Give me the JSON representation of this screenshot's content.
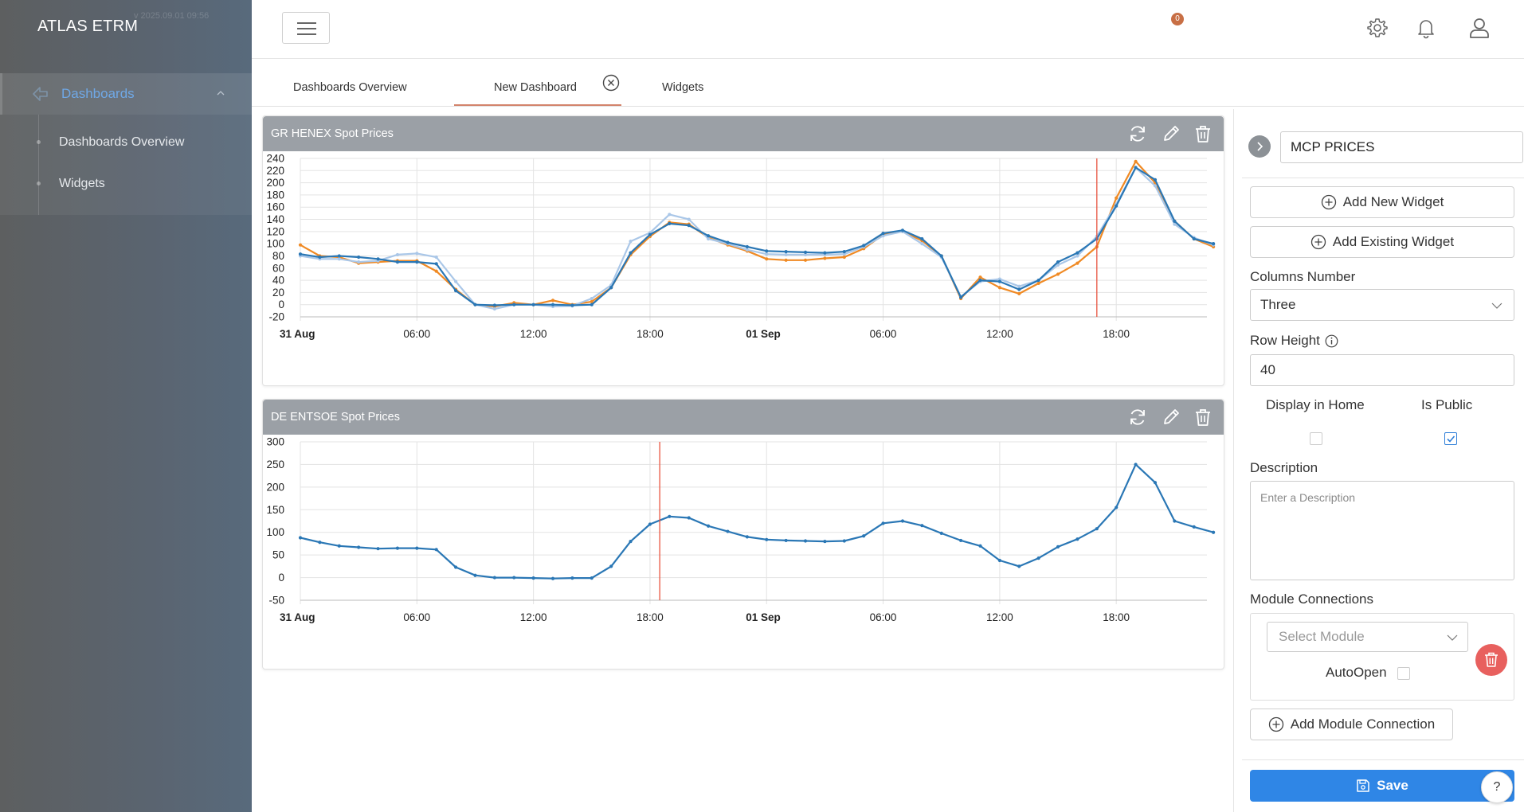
{
  "app": {
    "brand": "ATLAS ETRM",
    "timestamp": "v 2025.09.01 09:56"
  },
  "sidebar": {
    "active": "Dashboards",
    "items": [
      {
        "label": "Dashboards Overview"
      },
      {
        "label": "Widgets"
      }
    ]
  },
  "topbar": {
    "notifications_count": "0"
  },
  "tabs": [
    {
      "label": "Dashboards Overview"
    },
    {
      "label": "New Dashboard"
    },
    {
      "label": "Widgets"
    }
  ],
  "widgets": [
    {
      "title": "GR HENEX Spot Prices"
    },
    {
      "title": "DE ENTSOE Spot Prices"
    }
  ],
  "chart_data": [
    {
      "type": "line",
      "title": "GR HENEX Spot Prices",
      "ylim": [
        -20,
        240
      ],
      "yticks": [
        -20,
        0,
        20,
        40,
        60,
        80,
        100,
        120,
        140,
        160,
        180,
        200,
        220,
        240
      ],
      "xticks": [
        "31 Aug",
        "06:00",
        "12:00",
        "18:00",
        "01 Sep",
        "06:00",
        "12:00",
        "18:00"
      ],
      "xticks_bold": [
        true,
        false,
        false,
        false,
        true,
        false,
        false,
        false
      ],
      "x": [
        0,
        1,
        2,
        3,
        4,
        5,
        6,
        7,
        8,
        9,
        10,
        11,
        12,
        13,
        14,
        15,
        16,
        17,
        18,
        19,
        20,
        21,
        22,
        23,
        24,
        25,
        26,
        27,
        28,
        29,
        30,
        31,
        32,
        33,
        34,
        35,
        36,
        37,
        38,
        39,
        40,
        41,
        42,
        43,
        44,
        45,
        46,
        47
      ],
      "now_marker_x": 41,
      "series": [
        {
          "color": "#f08a24",
          "values": [
            98,
            80,
            78,
            68,
            70,
            72,
            72,
            55,
            25,
            0,
            -3,
            3,
            0,
            7,
            0,
            5,
            28,
            82,
            112,
            135,
            132,
            110,
            98,
            88,
            75,
            73,
            73,
            76,
            78,
            92,
            115,
            120,
            105,
            80,
            10,
            45,
            28,
            18,
            35,
            50,
            68,
            95,
            175,
            235,
            200,
            137,
            108,
            95
          ]
        },
        {
          "color": "#aac7e8",
          "values": [
            80,
            75,
            75,
            70,
            72,
            82,
            84,
            78,
            38,
            0,
            -7,
            0,
            0,
            -3,
            -2,
            10,
            32,
            104,
            118,
            148,
            140,
            108,
            100,
            90,
            83,
            82,
            82,
            82,
            83,
            95,
            113,
            120,
            100,
            78,
            13,
            38,
            42,
            30,
            40,
            65,
            80,
            112,
            165,
            225,
            195,
            132,
            110,
            98
          ]
        },
        {
          "color": "#2a77b5",
          "values": [
            83,
            78,
            80,
            78,
            75,
            70,
            70,
            67,
            23,
            0,
            -1,
            0,
            0,
            0,
            -1,
            0,
            28,
            85,
            115,
            133,
            130,
            113,
            102,
            95,
            88,
            87,
            86,
            85,
            87,
            97,
            117,
            122,
            108,
            80,
            12,
            40,
            38,
            25,
            40,
            70,
            85,
            108,
            162,
            225,
            205,
            137,
            108,
            100
          ]
        }
      ]
    },
    {
      "type": "line",
      "title": "DE ENTSOE Spot Prices",
      "ylim": [
        -50,
        300
      ],
      "yticks": [
        -50,
        0,
        50,
        100,
        150,
        200,
        250,
        300
      ],
      "xticks": [
        "31 Aug",
        "06:00",
        "12:00",
        "18:00",
        "01 Sep",
        "06:00",
        "12:00",
        "18:00"
      ],
      "xticks_bold": [
        true,
        false,
        false,
        false,
        true,
        false,
        false,
        false
      ],
      "x": [
        0,
        1,
        2,
        3,
        4,
        5,
        6,
        7,
        8,
        9,
        10,
        11,
        12,
        13,
        14,
        15,
        16,
        17,
        18,
        19,
        20,
        21,
        22,
        23,
        24,
        25,
        26,
        27,
        28,
        29,
        30,
        31,
        32,
        33,
        34,
        35,
        36,
        37,
        38,
        39,
        40,
        41,
        42,
        43,
        44,
        45,
        46,
        47
      ],
      "now_marker_x": 18.5,
      "series": [
        {
          "color": "#2a77b5",
          "values": [
            88,
            78,
            70,
            67,
            64,
            65,
            65,
            62,
            23,
            5,
            0,
            0,
            -1,
            -2,
            -1,
            -1,
            25,
            80,
            118,
            135,
            132,
            114,
            102,
            90,
            84,
            82,
            81,
            80,
            81,
            92,
            120,
            125,
            115,
            98,
            82,
            70,
            38,
            25,
            43,
            68,
            85,
            108,
            155,
            250,
            210,
            125,
            112,
            100
          ]
        }
      ]
    }
  ],
  "panel": {
    "dashboard_name": "MCP PRICES",
    "add_new_widget": "Add New Widget",
    "add_existing_widget": "Add Existing Widget",
    "columns_label": "Columns Number",
    "columns_value": "Three",
    "row_height_label": "Row Height",
    "row_height_value": "40",
    "display_home_label": "Display in Home",
    "is_public_label": "Is Public",
    "description_label": "Description",
    "description_placeholder": "Enter a Description",
    "module_connections_label": "Module Connections",
    "select_module_placeholder": "Select Module",
    "autoopen_label": "AutoOpen",
    "add_module_connection": "Add Module Connection",
    "save_label": "Save",
    "help_label": "?"
  },
  "colors": {
    "accent": "#2f86e6",
    "tab_underline": "#d3836b",
    "now_marker": "#e8523f",
    "danger": "#e8605e"
  }
}
